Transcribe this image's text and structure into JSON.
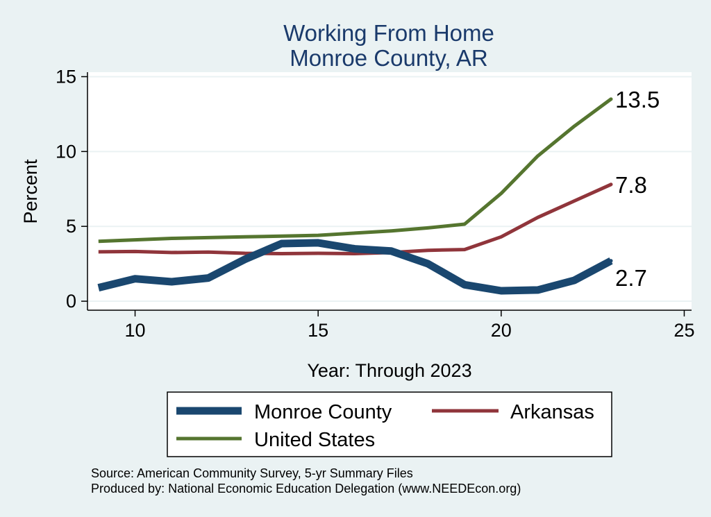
{
  "chart_data": {
    "type": "line",
    "title": "Working From Home",
    "subtitle": "Monroe County, AR",
    "xlabel": "Year: Through 2023",
    "ylabel": "Percent",
    "xlim": [
      8.7,
      25.2
    ],
    "ylim": [
      -0.6,
      15.3
    ],
    "xticks": [
      10,
      15,
      20,
      25
    ],
    "yticks": [
      0,
      5,
      10,
      15
    ],
    "grid": true,
    "legend_position": "bottom",
    "x": [
      9,
      10,
      11,
      12,
      13,
      14,
      15,
      16,
      17,
      18,
      19,
      20,
      21,
      22,
      23
    ],
    "series": [
      {
        "name": "Monroe County",
        "color": "#1a476f",
        "width": "thick",
        "values": [
          0.9,
          1.5,
          1.3,
          1.55,
          2.8,
          3.85,
          3.9,
          3.5,
          3.35,
          2.5,
          1.1,
          0.7,
          0.75,
          1.4,
          2.7
        ],
        "end_label": "2.7"
      },
      {
        "name": "Arkansas",
        "color": "#90353b",
        "width": "medium",
        "values": [
          3.3,
          3.32,
          3.25,
          3.28,
          3.2,
          3.18,
          3.2,
          3.18,
          3.25,
          3.4,
          3.45,
          4.3,
          5.6,
          6.7,
          7.8
        ],
        "end_label": "7.8"
      },
      {
        "name": "United States",
        "color": "#55752f",
        "width": "medium",
        "values": [
          4.0,
          4.1,
          4.2,
          4.25,
          4.3,
          4.35,
          4.4,
          4.55,
          4.7,
          4.9,
          5.15,
          7.2,
          9.7,
          11.7,
          13.5
        ],
        "end_label": "13.5"
      }
    ]
  },
  "notes": {
    "source": "Source: American Community Survey, 5-yr Summary Files",
    "produced_by": "Produced by: National Economic Education Delegation (www.NEEDEcon.org)"
  }
}
